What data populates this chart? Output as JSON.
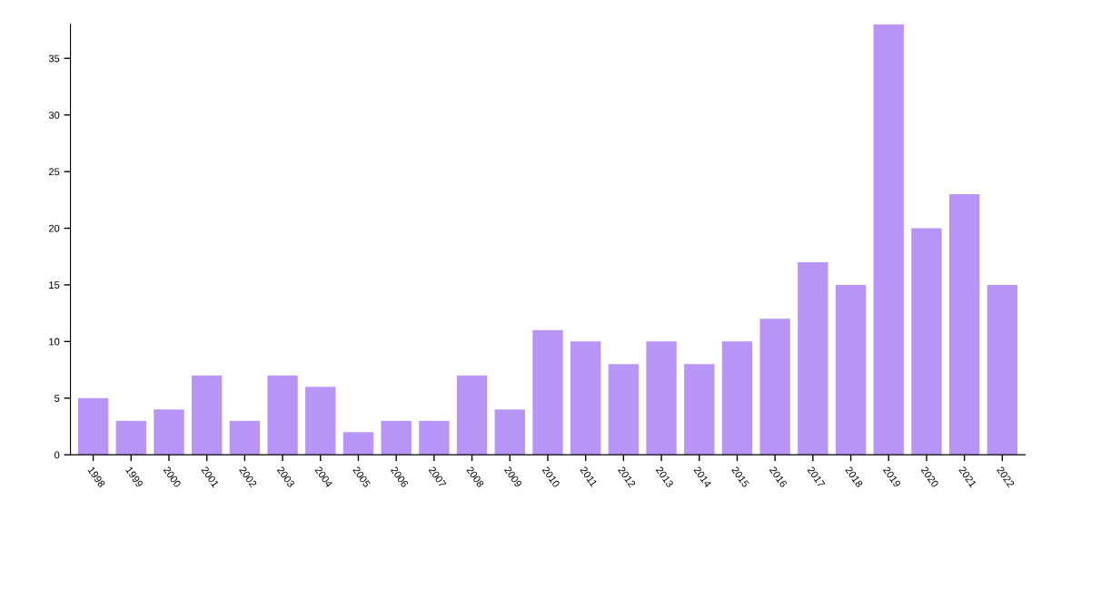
{
  "chart_data": {
    "type": "bar",
    "categories": [
      "1998",
      "1999",
      "2000",
      "2001",
      "2002",
      "2003",
      "2004",
      "2005",
      "2006",
      "2007",
      "2008",
      "2009",
      "2010",
      "2011",
      "2012",
      "2013",
      "2014",
      "2015",
      "2016",
      "2017",
      "2018",
      "2019",
      "2020",
      "2021",
      "2022"
    ],
    "values": [
      5,
      3,
      4,
      7,
      3,
      7,
      6,
      2,
      3,
      3,
      7,
      4,
      11,
      10,
      8,
      10,
      8,
      10,
      12,
      17,
      15,
      38,
      20,
      23,
      15
    ],
    "color": "#b794f6",
    "ylim": [
      0,
      38
    ],
    "yticks": [
      0,
      5,
      10,
      15,
      20,
      25,
      30,
      35
    ],
    "grid": false,
    "legend": false
  }
}
